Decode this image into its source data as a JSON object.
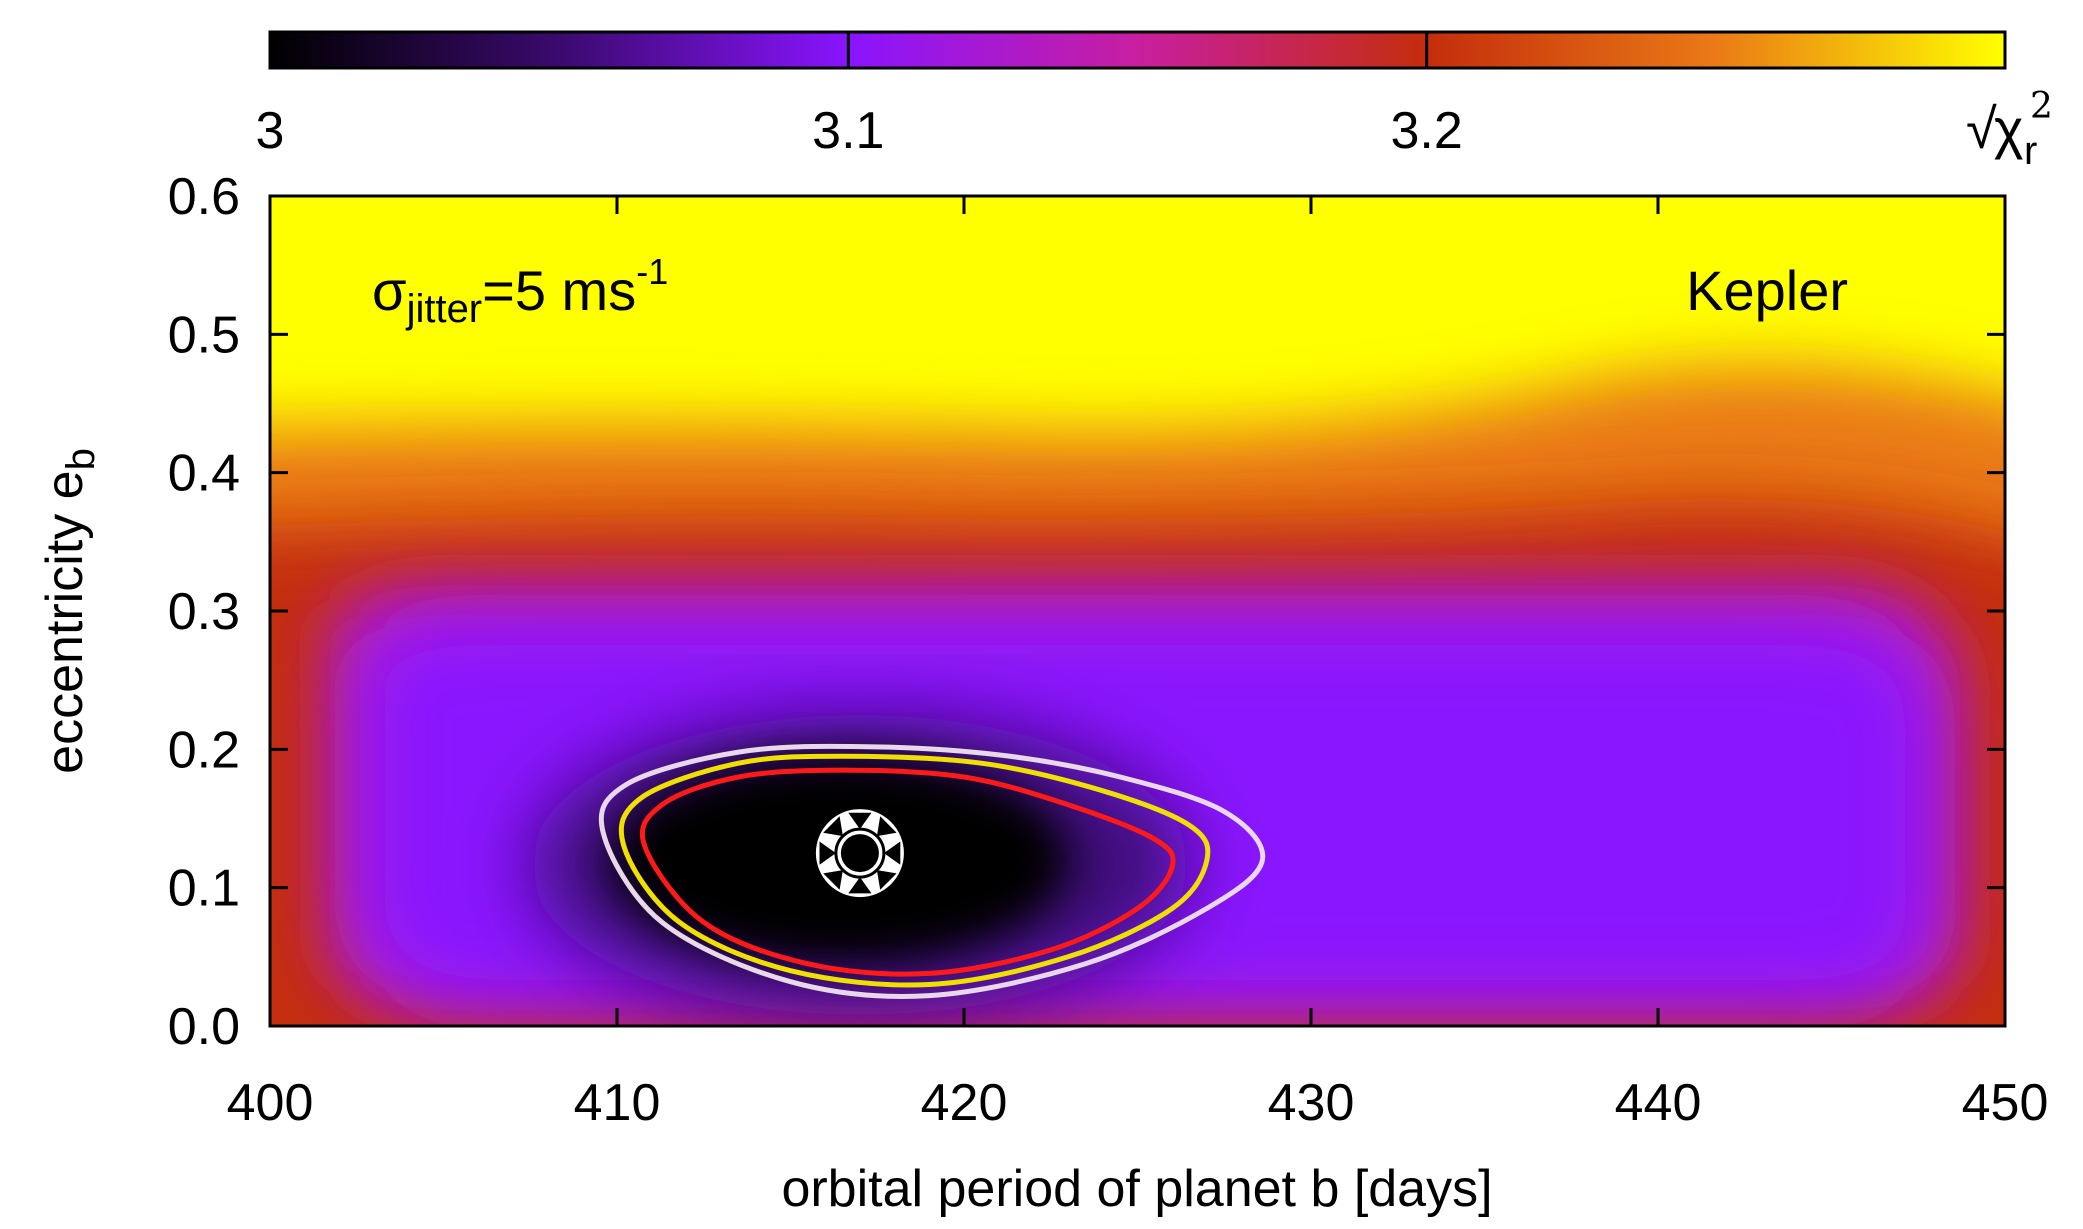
{
  "chart_data": {
    "type": "heatmap",
    "title": "",
    "xlabel": "orbital period of planet b [days]",
    "ylabel_main": "eccentricity e",
    "ylabel_sub": "b",
    "xlim": [
      400,
      450
    ],
    "ylim": [
      0.0,
      0.6
    ],
    "x_ticks": [
      400,
      410,
      420,
      430,
      440,
      450
    ],
    "x_tick_labels": [
      "400",
      "410",
      "420",
      "430",
      "440",
      "450"
    ],
    "y_ticks": [
      0.0,
      0.1,
      0.2,
      0.3,
      0.4,
      0.5,
      0.6
    ],
    "y_tick_labels": [
      "0.0",
      "0.1",
      "0.2",
      "0.3",
      "0.4",
      "0.5",
      "0.6"
    ],
    "colorbar": {
      "range": [
        3.0,
        3.3
      ],
      "ticks": [
        3.0,
        3.1,
        3.2
      ],
      "tick_labels": [
        "3",
        "3.1",
        "3.2"
      ],
      "label_root": "√",
      "label_chi": "χ",
      "label_sub": "r",
      "label_sup": "2",
      "colors": [
        "#000000",
        "#3a0a6e",
        "#8a14ff",
        "#c81ea0",
        "#c42d0c",
        "#ea7a16",
        "#ffff00"
      ]
    },
    "annotations": {
      "jitter_sigma": "σ",
      "jitter_sub": "jitter",
      "jitter_value": "=5 ms",
      "jitter_sup": "-1",
      "model": "Kepler"
    },
    "best_fit": {
      "period": 417.0,
      "eccentricity": 0.125
    },
    "contours": [
      {
        "level": "1σ",
        "color": "#ff1a1a",
        "points": [
          [
            410.8,
            0.13
          ],
          [
            411.3,
            0.16
          ],
          [
            413.5,
            0.18
          ],
          [
            416.5,
            0.185
          ],
          [
            420,
            0.18
          ],
          [
            423,
            0.16
          ],
          [
            425.5,
            0.135
          ],
          [
            426,
            0.115
          ],
          [
            425,
            0.085
          ],
          [
            422.5,
            0.055
          ],
          [
            419,
            0.038
          ],
          [
            415.5,
            0.045
          ],
          [
            412.5,
            0.075
          ]
        ]
      },
      {
        "level": "2σ",
        "color": "#f0e000",
        "points": [
          [
            410.2,
            0.13
          ],
          [
            410.7,
            0.165
          ],
          [
            413.5,
            0.19
          ],
          [
            416.5,
            0.195
          ],
          [
            420.5,
            0.19
          ],
          [
            424,
            0.17
          ],
          [
            426.5,
            0.145
          ],
          [
            427,
            0.12
          ],
          [
            426,
            0.085
          ],
          [
            423,
            0.05
          ],
          [
            419,
            0.03
          ],
          [
            415,
            0.04
          ],
          [
            411.8,
            0.075
          ]
        ]
      },
      {
        "level": "3σ",
        "color": "#e8d8e8",
        "points": [
          [
            409.6,
            0.14
          ],
          [
            410.3,
            0.175
          ],
          [
            413.5,
            0.198
          ],
          [
            417,
            0.202
          ],
          [
            421,
            0.196
          ],
          [
            424.5,
            0.18
          ],
          [
            427.5,
            0.155
          ],
          [
            428.6,
            0.12
          ],
          [
            427,
            0.085
          ],
          [
            423.5,
            0.045
          ],
          [
            419,
            0.022
          ],
          [
            415,
            0.032
          ],
          [
            411.3,
            0.075
          ]
        ]
      }
    ]
  }
}
